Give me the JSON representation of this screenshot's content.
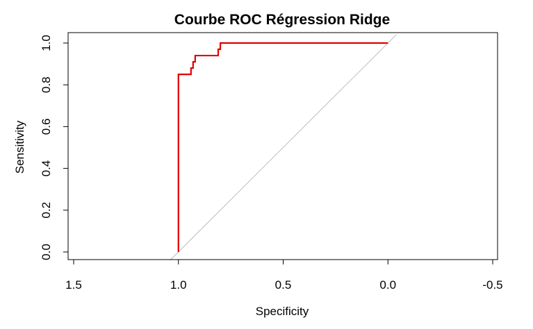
{
  "chart_data": {
    "type": "line",
    "title": "Courbe ROC Régression Ridge",
    "xlabel": "Specificity",
    "ylabel": "Sensitivity",
    "xlim": [
      1.5,
      -0.5
    ],
    "ylim": [
      0.0,
      1.0
    ],
    "x_reversed": true,
    "grid": false,
    "legend": "none",
    "x_ticks": [
      1.5,
      1.0,
      0.5,
      0.0,
      -0.5
    ],
    "x_tick_labels": [
      "1.5",
      "1.0",
      "0.5",
      "0.0",
      "-0.5"
    ],
    "y_ticks": [
      0.0,
      0.2,
      0.4,
      0.6,
      0.8,
      1.0
    ],
    "y_tick_labels": [
      "0.0",
      "0.2",
      "0.4",
      "0.6",
      "0.8",
      "1.0"
    ],
    "series": [
      {
        "color": "#e00000",
        "step": true,
        "x": [
          1.0,
          1.0,
          0.94,
          0.94,
          0.93,
          0.93,
          0.92,
          0.92,
          0.81,
          0.81,
          0.8,
          0.8,
          0.0
        ],
        "y": [
          0.0,
          0.85,
          0.85,
          0.88,
          0.88,
          0.91,
          0.91,
          0.94,
          0.94,
          0.97,
          0.97,
          1.0,
          1.0
        ]
      }
    ],
    "reference_line": {
      "x": [
        1.0,
        0.0
      ],
      "y": [
        0.0,
        1.0
      ],
      "color": "#bdbdbd"
    }
  }
}
